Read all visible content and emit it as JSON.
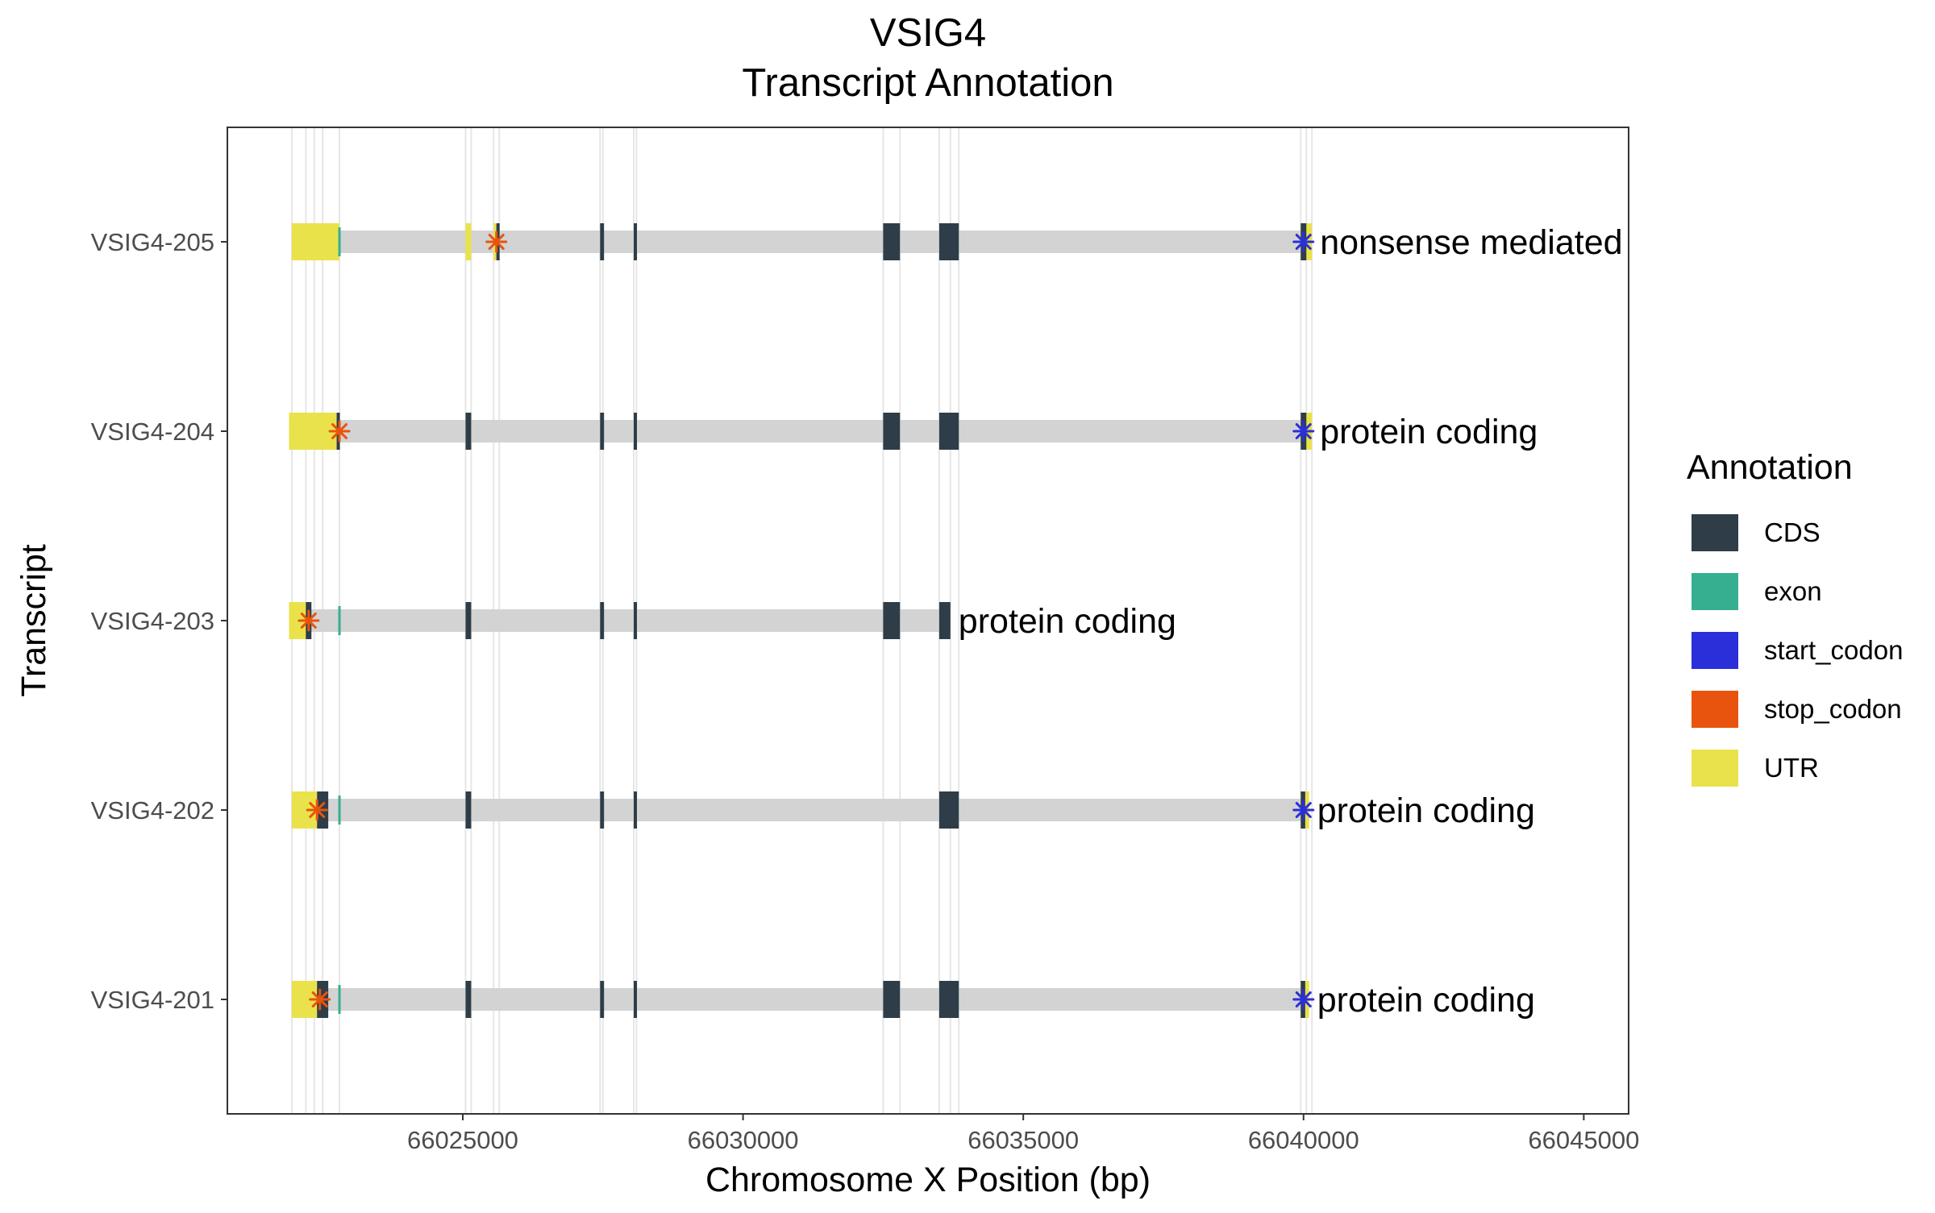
{
  "chart_data": {
    "type": "gene-structure",
    "title": "VSIG4",
    "subtitle": "Transcript Annotation",
    "xlabel": "Chromosome X Position (bp)",
    "ylabel": "Transcript",
    "xlim": [
      66020800,
      66045800
    ],
    "x_ticks": [
      66025000,
      66030000,
      66035000,
      66040000,
      66045000
    ],
    "x_tick_labels": [
      "66025000",
      "66030000",
      "66035000",
      "66040000",
      "66045000"
    ],
    "legend": {
      "title": "Annotation",
      "position": "right",
      "items": [
        {
          "label": "CDS",
          "color": "#2e3d47"
        },
        {
          "label": "exon",
          "color": "#36af91"
        },
        {
          "label": "start_codon",
          "color": "#2b2fd9"
        },
        {
          "label": "stop_codon",
          "color": "#e8540d"
        },
        {
          "label": "UTR",
          "color": "#e9e24b"
        }
      ]
    },
    "intron_color": "#d3d3d3",
    "guide_positions": [
      66021950,
      66022200,
      66022350,
      66022500,
      66022800,
      66025050,
      66025150,
      66025550,
      66025650,
      66027450,
      66027500,
      66028050,
      66028100,
      66032500,
      66032800,
      66033500,
      66033700,
      66033850,
      66039950,
      66040050,
      66040150
    ],
    "transcripts": [
      {
        "name": "VSIG4-205",
        "biotype": "nonsense mediated decay",
        "start": 66021950,
        "end": 66040150,
        "utr": [
          [
            66021950,
            66022800
          ],
          [
            66025050,
            66025150
          ],
          [
            66025550,
            66025650
          ],
          [
            66039950,
            66040150
          ]
        ],
        "cds": [
          [
            66025600,
            66025650
          ],
          [
            66027450,
            66027520
          ],
          [
            66028050,
            66028100
          ],
          [
            66032500,
            66032800
          ],
          [
            66033500,
            66033850
          ],
          [
            66039950,
            66040050
          ]
        ],
        "exon_marks": [
          66022800
        ],
        "stop_codon": 66025600,
        "start_codon": 66040000
      },
      {
        "name": "VSIG4-204",
        "biotype": "protein coding",
        "start": 66021900,
        "end": 66040150,
        "utr": [
          [
            66021900,
            66022800
          ],
          [
            66039950,
            66040150
          ]
        ],
        "cds": [
          [
            66022750,
            66022800
          ],
          [
            66025050,
            66025150
          ],
          [
            66027450,
            66027520
          ],
          [
            66028050,
            66028100
          ],
          [
            66032500,
            66032800
          ],
          [
            66033500,
            66033850
          ],
          [
            66039950,
            66040050
          ]
        ],
        "exon_marks": [],
        "stop_codon": 66022800,
        "start_codon": 66040000
      },
      {
        "name": "VSIG4-203",
        "biotype": "protein coding",
        "start": 66021900,
        "end": 66033700,
        "utr": [
          [
            66021900,
            66022200
          ]
        ],
        "cds": [
          [
            66022200,
            66022300
          ],
          [
            66025050,
            66025150
          ],
          [
            66027450,
            66027520
          ],
          [
            66028050,
            66028100
          ],
          [
            66032500,
            66032800
          ],
          [
            66033500,
            66033700
          ]
        ],
        "exon_marks": [
          66022800
        ],
        "stop_codon": 66022250,
        "start_codon": null
      },
      {
        "name": "VSIG4-202",
        "biotype": "protein coding",
        "start": 66021950,
        "end": 66040100,
        "utr": [
          [
            66021950,
            66022400
          ],
          [
            66039950,
            66040100
          ]
        ],
        "cds": [
          [
            66022400,
            66022600
          ],
          [
            66025050,
            66025150
          ],
          [
            66027450,
            66027520
          ],
          [
            66028050,
            66028100
          ],
          [
            66033500,
            66033850
          ],
          [
            66039950,
            66040030
          ]
        ],
        "exon_marks": [
          66022800
        ],
        "stop_codon": 66022400,
        "start_codon": 66040000
      },
      {
        "name": "VSIG4-201",
        "biotype": "protein coding",
        "start": 66021950,
        "end": 66040100,
        "utr": [
          [
            66021950,
            66022400
          ],
          [
            66039950,
            66040100
          ]
        ],
        "cds": [
          [
            66022400,
            66022600
          ],
          [
            66025050,
            66025150
          ],
          [
            66027450,
            66027520
          ],
          [
            66028050,
            66028100
          ],
          [
            66032500,
            66032800
          ],
          [
            66033500,
            66033850
          ],
          [
            66039950,
            66040030
          ]
        ],
        "exon_marks": [
          66022800
        ],
        "stop_codon": 66022450,
        "start_codon": 66040000
      }
    ]
  }
}
